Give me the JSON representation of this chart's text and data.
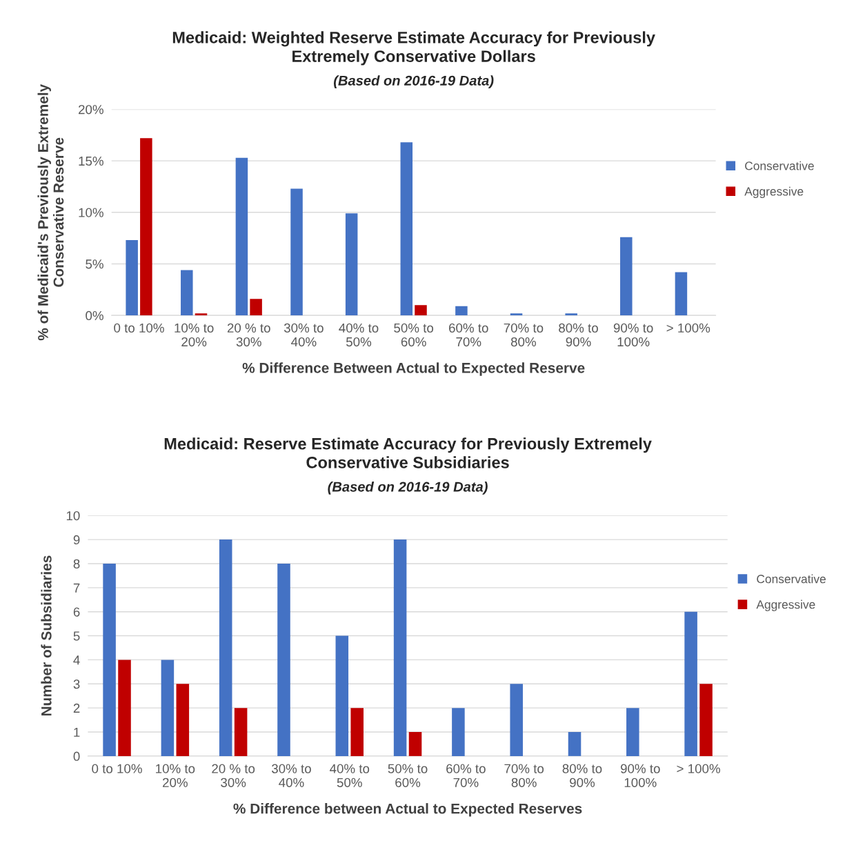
{
  "chart_data": [
    {
      "type": "bar",
      "title": "Medicaid: Weighted Reserve Estimate Accuracy for Previously\nExtremely Conservative Dollars",
      "subtitle": "(Based on 2016-19 Data)",
      "xlabel": "% Difference Between Actual to Expected Reserve",
      "ylabel": "% of Medicaid's Previously Extremely\nConservative Reserve",
      "categories": [
        "0 to 10%",
        "10% to\n20%",
        "20 % to\n30%",
        "30% to\n40%",
        "40% to\n50%",
        "50% to\n60%",
        "60% to\n70%",
        "70% to\n80%",
        "80% to\n90%",
        "90% to\n100%",
        "> 100%"
      ],
      "series": [
        {
          "name": "Conservative",
          "color": "#4472c4",
          "values": [
            7.3,
            4.4,
            15.3,
            12.3,
            9.9,
            16.8,
            0.9,
            0.2,
            0.2,
            7.6,
            4.2
          ]
        },
        {
          "name": "Aggressive",
          "color": "#c00000",
          "values": [
            17.2,
            0.2,
            1.6,
            0,
            0,
            1.0,
            0,
            0,
            0,
            0,
            0
          ]
        }
      ],
      "ylim": [
        0,
        20
      ],
      "yticks": [
        {
          "value": 0,
          "label": "0%"
        },
        {
          "value": 5,
          "label": "5%"
        },
        {
          "value": 10,
          "label": "10%"
        },
        {
          "value": 15,
          "label": "15%"
        },
        {
          "value": 20,
          "label": "20%"
        }
      ],
      "grid": "y",
      "legend": "right"
    },
    {
      "type": "bar",
      "title": "Medicaid: Reserve Estimate Accuracy for Previously Extremely\nConservative Subsidiaries",
      "subtitle": "(Based on 2016-19 Data)",
      "xlabel": "% Difference between Actual to Expected Reserves",
      "ylabel": "Number of Subsidiaries",
      "categories": [
        "0 to 10%",
        "10% to\n20%",
        "20 % to\n30%",
        "30% to\n40%",
        "40% to\n50%",
        "50% to\n60%",
        "60% to\n70%",
        "70% to\n80%",
        "80% to\n90%",
        "90% to\n100%",
        "> 100%"
      ],
      "series": [
        {
          "name": "Conservative",
          "color": "#4472c4",
          "values": [
            8,
            4,
            9,
            8,
            5,
            9,
            2,
            3,
            1,
            2,
            6
          ]
        },
        {
          "name": "Aggressive",
          "color": "#c00000",
          "values": [
            4,
            3,
            2,
            0,
            2,
            1,
            0,
            0,
            0,
            0,
            3
          ]
        }
      ],
      "ylim": [
        0,
        10
      ],
      "yticks": [
        0,
        1,
        2,
        3,
        4,
        5,
        6,
        7,
        8,
        9,
        10
      ],
      "grid": "y",
      "legend": "right"
    }
  ]
}
